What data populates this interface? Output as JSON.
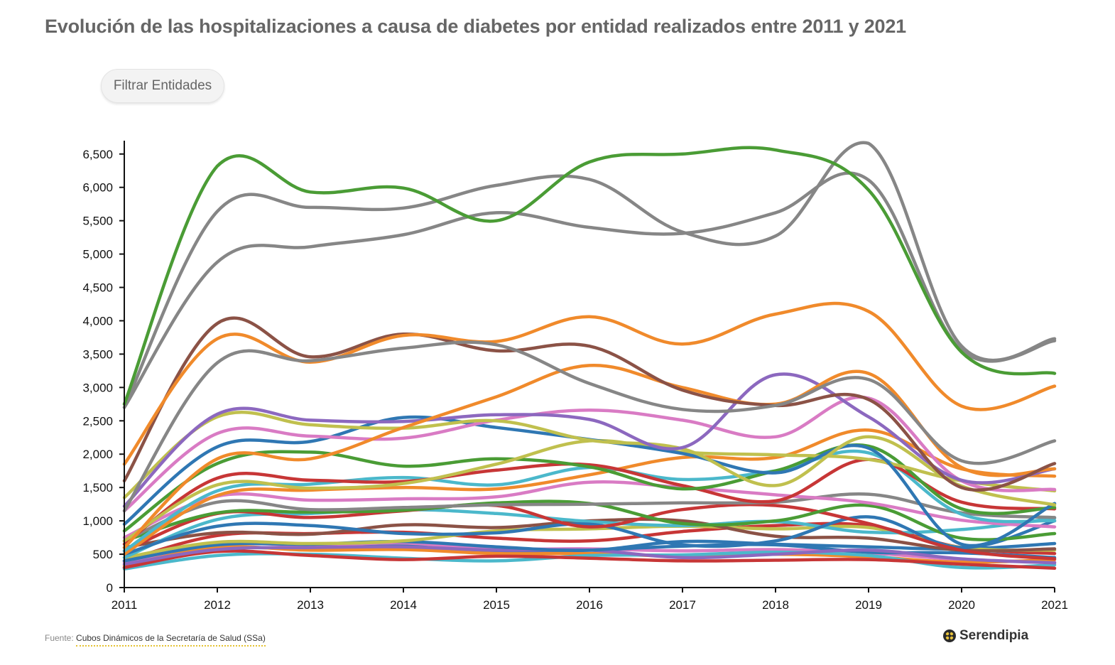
{
  "title": "Evolución de las hospitalizaciones a causa de diabetes por entidad realizados entre 2011 y 2021",
  "filter_button": {
    "label": "Filtrar Entidades"
  },
  "footer": {
    "source_prefix": "Fuente:",
    "source_link": "Cubos Dinámicos de la Secretaría de Salud (SSa)"
  },
  "brand": {
    "name": "Serendipia",
    "icon": "serendipia-logo-icon"
  },
  "chart_data": {
    "type": "line",
    "title": "Evolución de las hospitalizaciones a causa de diabetes por entidad realizados entre 2011 y 2021",
    "xlabel": "",
    "ylabel": "",
    "x": [
      2011,
      2012,
      2013,
      2014,
      2015,
      2016,
      2017,
      2018,
      2019,
      2020,
      2021
    ],
    "x_tick_labels": [
      "2011",
      "2012",
      "2013",
      "2014",
      "2015",
      "2016",
      "2017",
      "2018",
      "2019",
      "2020",
      "2021"
    ],
    "ylim": [
      0,
      6700
    ],
    "y_ticks": [
      0,
      500,
      1000,
      1500,
      2000,
      2500,
      3000,
      3500,
      4000,
      4500,
      5000,
      5500,
      6000,
      6500
    ],
    "y_tick_labels": [
      "0",
      "500",
      "1,000",
      "1,500",
      "2,000",
      "2,500",
      "3,000",
      "3,500",
      "4,000",
      "4,500",
      "5,000",
      "5,500",
      "6,000",
      "6,500"
    ],
    "grid": false,
    "legend": "none",
    "series": [
      {
        "color": "#4a9c35",
        "values": [
          2750,
          6320,
          5930,
          5990,
          5500,
          6380,
          6500,
          6560,
          5960,
          3530,
          3210
        ]
      },
      {
        "color": "#868686",
        "values": [
          2700,
          5640,
          5700,
          5690,
          6030,
          6120,
          5330,
          5270,
          6660,
          3620,
          3730
        ]
      },
      {
        "color": "#868686",
        "values": [
          2700,
          4880,
          5110,
          5290,
          5620,
          5400,
          5310,
          5620,
          6110,
          3560,
          3700
        ]
      },
      {
        "color": "#868686",
        "values": [
          1150,
          3370,
          3400,
          3590,
          3640,
          3060,
          2670,
          2730,
          3120,
          1900,
          2200
        ]
      },
      {
        "color": "#f08a2b",
        "values": [
          1850,
          3730,
          3380,
          3780,
          3690,
          4060,
          3650,
          4100,
          4140,
          2720,
          3020
        ]
      },
      {
        "color": "#8b5246",
        "values": [
          1600,
          3960,
          3460,
          3800,
          3550,
          3620,
          2960,
          2730,
          2820,
          1500,
          1860
        ]
      },
      {
        "color": "#f08a2b",
        "values": [
          600,
          1930,
          1930,
          2400,
          2860,
          3330,
          3000,
          2750,
          3210,
          1800,
          1780
        ]
      },
      {
        "color": "#8c68bf",
        "values": [
          1220,
          2600,
          2510,
          2490,
          2590,
          2520,
          2100,
          3190,
          2560,
          1610,
          1780
        ]
      },
      {
        "color": "#c0c04e",
        "values": [
          1350,
          2560,
          2440,
          2390,
          2500,
          2210,
          2080,
          1530,
          2260,
          1520,
          1240
        ]
      },
      {
        "color": "#d97bc4",
        "values": [
          1150,
          2310,
          2270,
          2240,
          2510,
          2660,
          2510,
          2260,
          2840,
          1600,
          1470
        ]
      },
      {
        "color": "#2f77b3",
        "values": [
          950,
          2110,
          2190,
          2550,
          2400,
          2220,
          2010,
          1720,
          2090,
          650,
          1260
        ]
      },
      {
        "color": "#c0c04e",
        "values": [
          700,
          1540,
          1490,
          1560,
          1850,
          2200,
          2030,
          1990,
          1920,
          1600,
          1450
        ]
      },
      {
        "color": "#4a9c35",
        "values": [
          850,
          1860,
          2030,
          1820,
          1930,
          1810,
          1480,
          1750,
          2120,
          1180,
          1200
        ]
      },
      {
        "color": "#c73636",
        "values": [
          650,
          1640,
          1610,
          1590,
          1760,
          1840,
          1530,
          1300,
          1920,
          1280,
          1180
        ]
      },
      {
        "color": "#4bb8cb",
        "values": [
          550,
          1450,
          1550,
          1650,
          1540,
          1800,
          1620,
          1750,
          2020,
          1100,
          1000
        ]
      },
      {
        "color": "#f08a2b",
        "values": [
          500,
          1380,
          1460,
          1500,
          1480,
          1690,
          1950,
          1950,
          2360,
          1780,
          1670
        ]
      },
      {
        "color": "#d97bc4",
        "values": [
          750,
          1370,
          1310,
          1330,
          1360,
          1580,
          1500,
          1390,
          1270,
          1010,
          910
        ]
      },
      {
        "color": "#868686",
        "values": [
          700,
          1280,
          1170,
          1200,
          1240,
          1250,
          1270,
          1280,
          1400,
          1120,
          1050
        ]
      },
      {
        "color": "#4a9c35",
        "values": [
          700,
          1120,
          1130,
          1160,
          1270,
          1260,
          960,
          1000,
          1230,
          740,
          810
        ]
      },
      {
        "color": "#c73636",
        "values": [
          550,
          1110,
          1050,
          1150,
          1230,
          910,
          1170,
          1230,
          960,
          560,
          430
        ]
      },
      {
        "color": "#2f77b3",
        "values": [
          500,
          920,
          930,
          810,
          820,
          950,
          640,
          700,
          1060,
          600,
          1000
        ]
      },
      {
        "color": "#4bb8cb",
        "values": [
          450,
          1020,
          1110,
          1170,
          1110,
          990,
          930,
          990,
          830,
          870,
          1040
        ]
      },
      {
        "color": "#8b5246",
        "values": [
          600,
          820,
          800,
          940,
          900,
          1000,
          1000,
          770,
          740,
          560,
          580
        ]
      },
      {
        "color": "#c0c04e",
        "values": [
          450,
          680,
          660,
          700,
          850,
          880,
          920,
          880,
          900,
          600,
          560
        ]
      },
      {
        "color": "#2f77b3",
        "values": [
          400,
          640,
          650,
          690,
          610,
          560,
          690,
          650,
          610,
          580,
          660
        ]
      },
      {
        "color": "#c73636",
        "values": [
          400,
          780,
          810,
          830,
          740,
          700,
          840,
          930,
          930,
          600,
          510
        ]
      },
      {
        "color": "#8c68bf",
        "values": [
          350,
          570,
          600,
          610,
          560,
          560,
          450,
          500,
          560,
          430,
          370
        ]
      },
      {
        "color": "#c73636",
        "values": [
          300,
          540,
          480,
          420,
          470,
          440,
          400,
          410,
          420,
          350,
          290
        ]
      },
      {
        "color": "#4bb8cb",
        "values": [
          280,
          480,
          500,
          440,
          400,
          480,
          490,
          530,
          480,
          300,
          340
        ]
      },
      {
        "color": "#f08a2b",
        "values": [
          330,
          600,
          560,
          570,
          510,
          510,
          470,
          500,
          460,
          380,
          420
        ]
      },
      {
        "color": "#2f77b3",
        "values": [
          300,
          580,
          580,
          620,
          520,
          560,
          620,
          640,
          530,
          520,
          450
        ]
      },
      {
        "color": "#d97bc4",
        "values": [
          380,
          640,
          640,
          660,
          580,
          580,
          550,
          570,
          520,
          420,
          380
        ]
      }
    ]
  }
}
